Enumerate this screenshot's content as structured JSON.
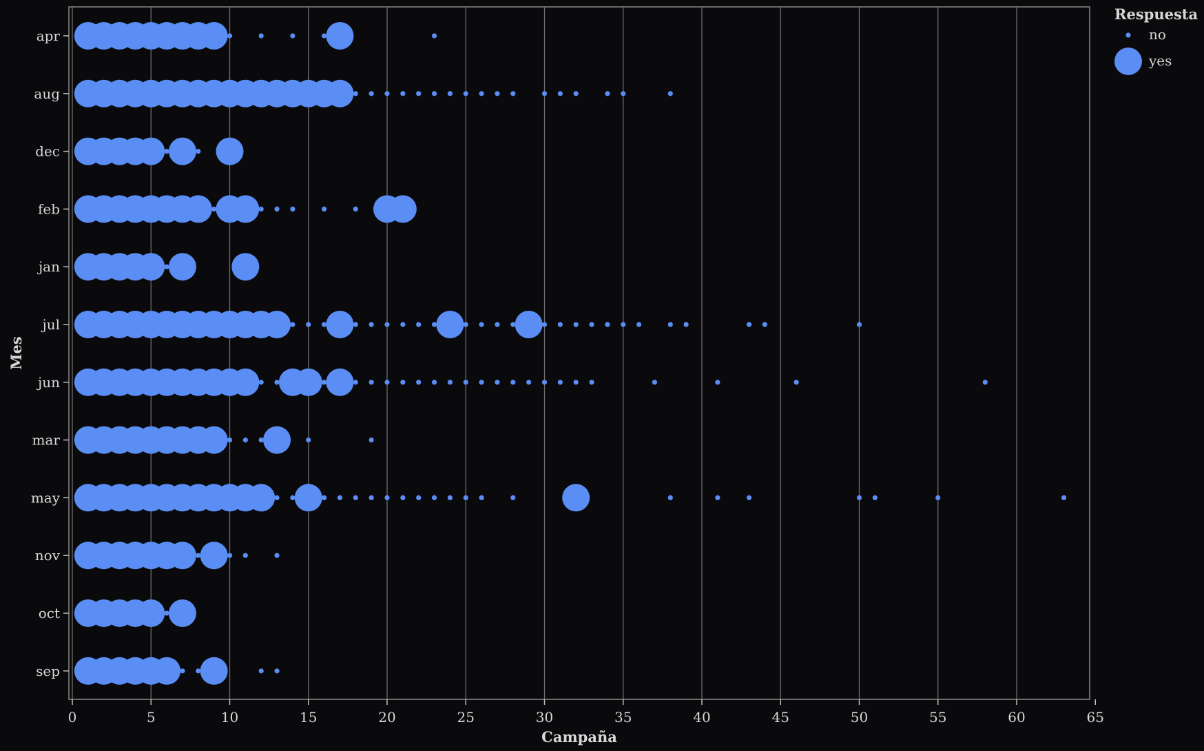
{
  "chart_data": {
    "type": "scatter",
    "xlabel": "Campaña",
    "ylabel": "Mes",
    "xlim": [
      0,
      65
    ],
    "x_ticks": [
      0,
      5,
      10,
      15,
      20,
      25,
      30,
      35,
      40,
      45,
      50,
      55,
      60,
      65
    ],
    "categories": [
      "apr",
      "aug",
      "dec",
      "feb",
      "jan",
      "jul",
      "jun",
      "mar",
      "may",
      "nov",
      "oct",
      "sep"
    ],
    "grid": "vertical",
    "legend": {
      "title": "Respuesta",
      "position": "top-right",
      "entries": [
        {
          "label": "no",
          "size": "small"
        },
        {
          "label": "yes",
          "size": "large"
        }
      ]
    },
    "colors": {
      "point": "#5b8ef5",
      "background": "#0a0a0d",
      "grid": "#6e6e6e",
      "text": "#d8d8d8"
    },
    "series": [
      {
        "name": "no",
        "points": {
          "apr": [
            1,
            2,
            3,
            4,
            5,
            6,
            7,
            8,
            9,
            10,
            12,
            14,
            16,
            23
          ],
          "aug": [
            1,
            2,
            3,
            4,
            5,
            6,
            7,
            8,
            9,
            10,
            11,
            12,
            13,
            14,
            15,
            16,
            17,
            18,
            19,
            20,
            21,
            22,
            23,
            24,
            25,
            26,
            27,
            28,
            30,
            31,
            32,
            34,
            35,
            38
          ],
          "dec": [
            1,
            2,
            3,
            4,
            5,
            6,
            7,
            8
          ],
          "feb": [
            1,
            2,
            3,
            4,
            5,
            6,
            7,
            8,
            9,
            10,
            11,
            12,
            13,
            14,
            16,
            18
          ],
          "jan": [
            1,
            2,
            3,
            4,
            5,
            6,
            7
          ],
          "jul": [
            1,
            2,
            3,
            4,
            5,
            6,
            7,
            8,
            9,
            10,
            11,
            12,
            13,
            14,
            15,
            16,
            17,
            18,
            19,
            20,
            21,
            22,
            23,
            24,
            25,
            26,
            27,
            28,
            29,
            30,
            31,
            32,
            33,
            34,
            35,
            36,
            38,
            39,
            43,
            44,
            50
          ],
          "jun": [
            1,
            2,
            3,
            4,
            5,
            6,
            7,
            8,
            9,
            10,
            11,
            12,
            13,
            14,
            15,
            16,
            17,
            18,
            19,
            20,
            21,
            22,
            23,
            24,
            25,
            26,
            27,
            28,
            29,
            30,
            31,
            32,
            33,
            37,
            41,
            46,
            58
          ],
          "mar": [
            1,
            2,
            3,
            4,
            5,
            6,
            7,
            8,
            9,
            10,
            11,
            12,
            13,
            15,
            19
          ],
          "may": [
            1,
            2,
            3,
            4,
            5,
            6,
            7,
            8,
            9,
            10,
            11,
            12,
            13,
            14,
            15,
            16,
            17,
            18,
            19,
            20,
            21,
            22,
            23,
            24,
            25,
            26,
            28,
            32,
            38,
            41,
            43,
            50,
            51,
            55,
            63
          ],
          "nov": [
            1,
            2,
            3,
            4,
            5,
            6,
            7,
            8,
            9,
            10,
            11,
            13
          ],
          "oct": [
            1,
            2,
            3,
            4,
            5,
            6,
            7
          ],
          "sep": [
            1,
            2,
            3,
            4,
            5,
            6,
            7,
            8,
            9,
            12,
            13
          ]
        }
      },
      {
        "name": "yes",
        "points": {
          "apr": [
            1,
            2,
            3,
            4,
            5,
            6,
            7,
            8,
            9,
            17
          ],
          "aug": [
            1,
            2,
            3,
            4,
            5,
            6,
            7,
            8,
            9,
            10,
            11,
            12,
            13,
            14,
            15,
            16,
            17
          ],
          "dec": [
            1,
            2,
            3,
            4,
            5,
            7,
            10
          ],
          "feb": [
            1,
            2,
            3,
            4,
            5,
            6,
            7,
            8,
            10,
            11,
            20,
            21
          ],
          "jan": [
            1,
            2,
            3,
            4,
            5,
            7,
            11
          ],
          "jul": [
            1,
            2,
            3,
            4,
            5,
            6,
            7,
            8,
            9,
            10,
            11,
            12,
            13,
            17,
            24,
            29
          ],
          "jun": [
            1,
            2,
            3,
            4,
            5,
            6,
            7,
            8,
            9,
            10,
            11,
            14,
            15,
            17
          ],
          "mar": [
            1,
            2,
            3,
            4,
            5,
            6,
            7,
            8,
            9,
            13
          ],
          "may": [
            1,
            2,
            3,
            4,
            5,
            6,
            7,
            8,
            9,
            10,
            11,
            12,
            15,
            32
          ],
          "nov": [
            1,
            2,
            3,
            4,
            5,
            6,
            7,
            9
          ],
          "oct": [
            1,
            2,
            3,
            4,
            5,
            7
          ],
          "sep": [
            1,
            2,
            3,
            4,
            5,
            6,
            9
          ]
        }
      }
    ]
  }
}
